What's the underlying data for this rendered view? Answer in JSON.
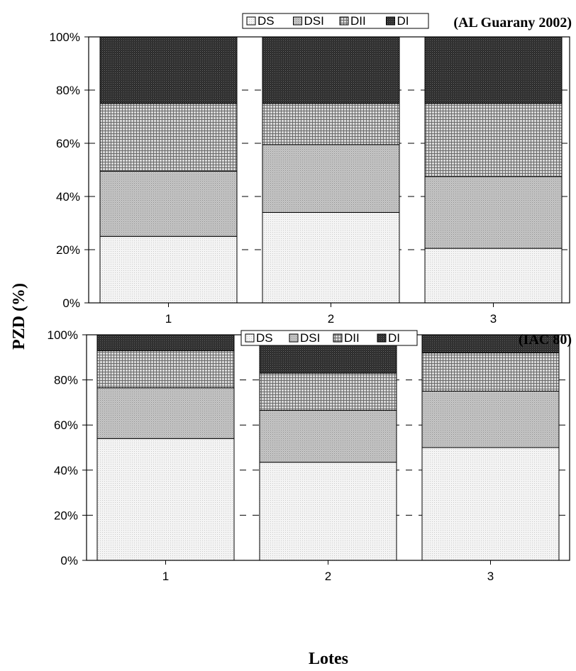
{
  "y_axis_title": "PZD (%)",
  "x_axis_title": "Lotes",
  "chart_data": [
    {
      "type": "bar",
      "stacked": true,
      "title": "(AL Guarany 2002)",
      "categories": [
        "1",
        "2",
        "3"
      ],
      "ylim": [
        0,
        100
      ],
      "y_ticks": [
        "0%",
        "20%",
        "40%",
        "60%",
        "80%",
        "100%"
      ],
      "legend_position": "top-right",
      "series": [
        {
          "name": "DS",
          "values": [
            25,
            34,
            20.5
          ]
        },
        {
          "name": "DSI",
          "values": [
            24.5,
            25.5,
            27
          ]
        },
        {
          "name": "DII",
          "values": [
            25.5,
            15.5,
            27.5
          ]
        },
        {
          "name": "DI",
          "values": [
            25,
            25,
            25
          ]
        }
      ]
    },
    {
      "type": "bar",
      "stacked": true,
      "title": "(IAC 80)",
      "categories": [
        "1",
        "2",
        "3"
      ],
      "ylim": [
        0,
        100
      ],
      "y_ticks": [
        "0%",
        "20%",
        "40%",
        "60%",
        "80%",
        "100%"
      ],
      "legend_position": "top",
      "series": [
        {
          "name": "DS",
          "values": [
            54,
            43.5,
            50
          ]
        },
        {
          "name": "DSI",
          "values": [
            22.5,
            23,
            25
          ]
        },
        {
          "name": "DII",
          "values": [
            16.5,
            16.5,
            17
          ]
        },
        {
          "name": "DI",
          "values": [
            7,
            17,
            8
          ]
        }
      ]
    }
  ]
}
